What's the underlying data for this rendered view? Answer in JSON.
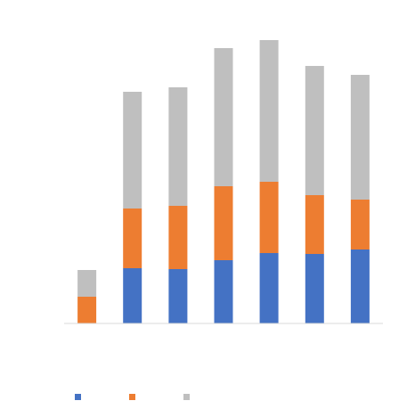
{
  "chart_data": {
    "type": "bar",
    "stacked": true,
    "title": "",
    "xlabel": "",
    "ylabel": "",
    "categories": [
      "",
      "",
      "",
      "",
      "",
      "",
      ""
    ],
    "ylim": [
      0,
      320
    ],
    "grid": false,
    "legend_position": "bottom",
    "series": [
      {
        "color": "#4472C4",
        "values": [
          0,
          62,
          61,
          71,
          79,
          78,
          83
        ]
      },
      {
        "color": "#ED7D31",
        "values": [
          30,
          67,
          71,
          83,
          80,
          66,
          56
        ]
      },
      {
        "color": "#BFBFBF",
        "values": [
          30,
          131,
          133,
          155,
          159,
          145,
          140
        ]
      }
    ]
  }
}
